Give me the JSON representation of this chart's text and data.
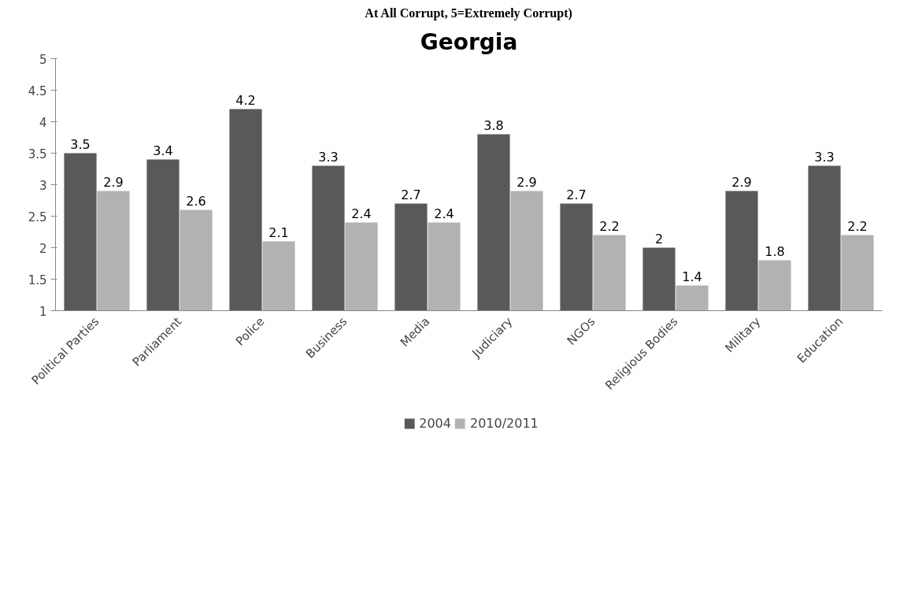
{
  "chart_data": {
    "type": "bar",
    "title": "Georgia",
    "annotations": [
      "At All Corrupt, 5=Extremely Corrupt)"
    ],
    "categories": [
      "Political Parties",
      "Parliament",
      "Police",
      "Business",
      "Media",
      "Judiciary",
      "NGOs",
      "Religious Bodies",
      "Military",
      "Education"
    ],
    "series": [
      {
        "name": "2004",
        "color": "#595959",
        "values": [
          3.5,
          3.4,
          4.2,
          3.3,
          2.7,
          3.8,
          2.7,
          2,
          2.9,
          3.3
        ]
      },
      {
        "name": "2010/2011",
        "color": "#b2b2b2",
        "values": [
          2.9,
          2.6,
          2.1,
          2.4,
          2.4,
          2.9,
          2.2,
          1.4,
          1.8,
          2.2
        ]
      }
    ],
    "ylim": [
      1,
      5
    ],
    "yticks": [
      1,
      1.5,
      2,
      2.5,
      3,
      3.5,
      4,
      4.5,
      5
    ],
    "data_labels": true,
    "grid": false,
    "legend": "bottom"
  }
}
